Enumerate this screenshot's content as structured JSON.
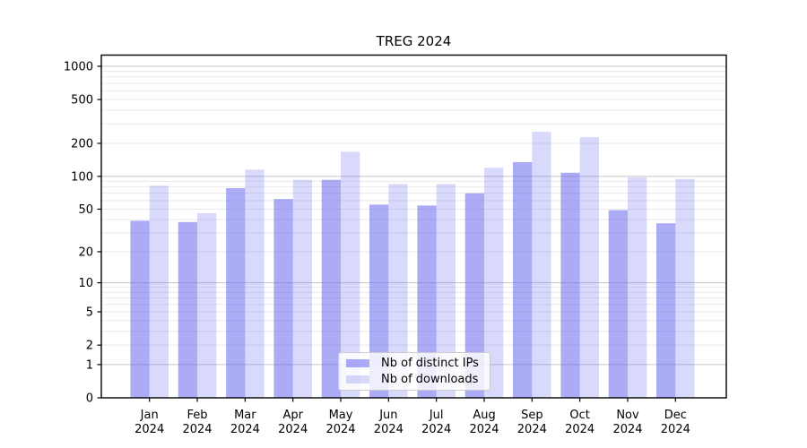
{
  "chart_data": {
    "type": "bar",
    "title": "TREG 2024",
    "yscale": "log1p",
    "ylim": [
      0,
      1280
    ],
    "grid": true,
    "legend_position": "lower center",
    "accent_color": "#6666ee",
    "major_grid_color": "#c6c6c6",
    "minor_grid_color": "#e9e9e9",
    "categories": [
      "Jan",
      "Feb",
      "Mar",
      "Apr",
      "May",
      "Jun",
      "Jul",
      "Aug",
      "Sep",
      "Oct",
      "Nov",
      "Dec"
    ],
    "category_year": "2024",
    "y_ticks": [
      {
        "value": 0,
        "label": "0"
      },
      {
        "value": 1,
        "label": "1"
      },
      {
        "value": 2,
        "label": "2"
      },
      {
        "value": 5,
        "label": "5"
      },
      {
        "value": 10,
        "label": "10"
      },
      {
        "value": 20,
        "label": "20"
      },
      {
        "value": 50,
        "label": "50"
      },
      {
        "value": 100,
        "label": "100"
      },
      {
        "value": 200,
        "label": "200"
      },
      {
        "value": 500,
        "label": "500"
      },
      {
        "value": 1000,
        "label": "1000"
      }
    ],
    "series": [
      {
        "name": "Nb of distinct IPs",
        "color": "rgba(102,102,238,0.55)",
        "values": [
          39,
          38,
          78,
          62,
          93,
          55,
          54,
          70,
          135,
          108,
          49,
          37
        ]
      },
      {
        "name": "Nb of downloads",
        "color": "rgba(102,102,238,0.25)",
        "values": [
          82,
          46,
          115,
          93,
          168,
          85,
          85,
          120,
          255,
          228,
          98,
          95
        ]
      }
    ]
  }
}
